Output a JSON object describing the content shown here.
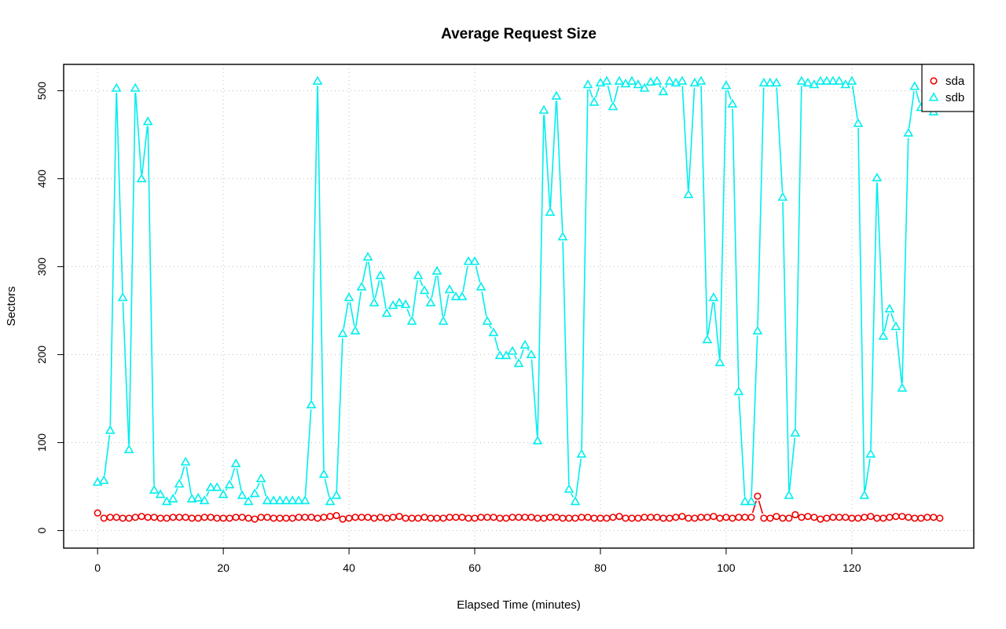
{
  "chart_data": {
    "type": "line",
    "title": "Average Request Size",
    "xlabel": "Elapsed Time (minutes)",
    "ylabel": "Sectors",
    "xlim": [
      -5.4,
      139.4
    ],
    "ylim": [
      -20,
      530
    ],
    "x_ticks": [
      0,
      20,
      40,
      60,
      80,
      100,
      120
    ],
    "y_ticks": [
      0,
      100,
      200,
      300,
      400,
      500
    ],
    "grid": true,
    "legend": "top-right",
    "x": [
      0,
      1,
      2,
      3,
      4,
      5,
      6,
      7,
      8,
      9,
      10,
      11,
      12,
      13,
      14,
      15,
      16,
      17,
      18,
      19,
      20,
      21,
      22,
      23,
      24,
      25,
      26,
      27,
      28,
      29,
      30,
      31,
      32,
      33,
      34,
      35,
      36,
      37,
      38,
      39,
      40,
      41,
      42,
      43,
      44,
      45,
      46,
      47,
      48,
      49,
      50,
      51,
      52,
      53,
      54,
      55,
      56,
      57,
      58,
      59,
      60,
      61,
      62,
      63,
      64,
      65,
      66,
      67,
      68,
      69,
      70,
      71,
      72,
      73,
      74,
      75,
      76,
      77,
      78,
      79,
      80,
      81,
      82,
      83,
      84,
      85,
      86,
      87,
      88,
      89,
      90,
      91,
      92,
      93,
      94,
      95,
      96,
      97,
      98,
      99,
      100,
      101,
      102,
      103,
      104,
      105,
      106,
      107,
      108,
      109,
      110,
      111,
      112,
      113,
      114,
      115,
      116,
      117,
      118,
      119,
      120,
      121,
      122,
      123,
      124,
      125,
      126,
      127,
      128,
      129,
      130,
      131,
      132,
      133,
      134
    ],
    "series": [
      {
        "name": "sda",
        "color": "#ee0000",
        "marker": "circle",
        "values": [
          20,
          14,
          15,
          15,
          14,
          14,
          15,
          16,
          15,
          15,
          14,
          14,
          15,
          15,
          15,
          14,
          14,
          15,
          15,
          14,
          14,
          14,
          15,
          15,
          14,
          13,
          15,
          15,
          14,
          14,
          14,
          14,
          15,
          15,
          15,
          14,
          15,
          16,
          17,
          13,
          14,
          15,
          15,
          15,
          14,
          15,
          14,
          15,
          16,
          14,
          14,
          14,
          15,
          14,
          14,
          14,
          15,
          15,
          15,
          14,
          14,
          15,
          15,
          15,
          14,
          14,
          15,
          15,
          15,
          15,
          14,
          14,
          15,
          15,
          14,
          14,
          14,
          15,
          15,
          14,
          14,
          14,
          15,
          16,
          14,
          14,
          14,
          15,
          15,
          15,
          14,
          14,
          15,
          16,
          14,
          14,
          15,
          15,
          16,
          14,
          15,
          14,
          15,
          15,
          15,
          39,
          14,
          14,
          16,
          14,
          14,
          18,
          15,
          16,
          15,
          13,
          14,
          15,
          15,
          15,
          14,
          14,
          15,
          16,
          14,
          14,
          15,
          16,
          16,
          15,
          14,
          14,
          15,
          15,
          14
        ]
      },
      {
        "name": "sdb",
        "color": "#00eeee",
        "marker": "triangle",
        "values": [
          55,
          57,
          114,
          503,
          265,
          92,
          503,
          400,
          465,
          46,
          41,
          33,
          36,
          53,
          78,
          36,
          37,
          34,
          49,
          49,
          41,
          52,
          76,
          40,
          33,
          42,
          59,
          34,
          34,
          34,
          34,
          34,
          34,
          34,
          143,
          511,
          64,
          33,
          40,
          224,
          265,
          227,
          277,
          311,
          259,
          290,
          247,
          256,
          259,
          257,
          238,
          290,
          273,
          259,
          295,
          238,
          274,
          266,
          266,
          306,
          306,
          277,
          238,
          225,
          199,
          199,
          204,
          190,
          211,
          200,
          102,
          478,
          362,
          494,
          334,
          47,
          33,
          87,
          507,
          487,
          509,
          511,
          482,
          511,
          508,
          511,
          507,
          503,
          510,
          511,
          499,
          511,
          509,
          511,
          382,
          509,
          511,
          217,
          265,
          191,
          506,
          485,
          158,
          33,
          33,
          227,
          509,
          509,
          509,
          379,
          40,
          111,
          511,
          509,
          507,
          511,
          511,
          511,
          511,
          507,
          511,
          463,
          40,
          87,
          401,
          221,
          252,
          232,
          162,
          452,
          505,
          481,
          496,
          476,
          511
        ]
      }
    ]
  }
}
